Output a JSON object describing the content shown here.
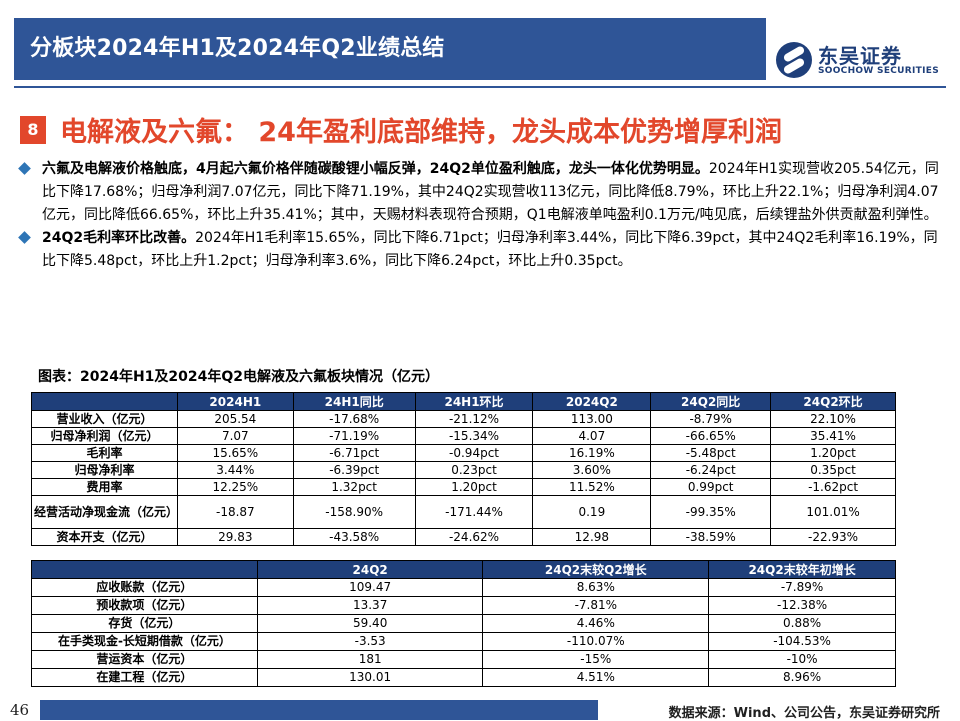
{
  "header": {
    "title": "分板块2024年H1及2024年Q2业绩总结",
    "logo_cn": "东吴证券",
    "logo_en": "SOOCHOW SECURITIES"
  },
  "section": {
    "number": "8",
    "title": "电解液及六氟： 24年盈利底部维持，龙头成本优势增厚利润"
  },
  "bullets": [
    {
      "bold": "六氟及电解液价格触底，4月起六氟价格伴随碳酸锂小幅反弹，24Q2单位盈利触底，龙头一体化优势明显。",
      "text": "2024年H1实现营收205.54亿元，同比下降17.68%；归母净利润7.07亿元，同比下降71.19%，其中24Q2实现营收113亿元，同比降低8.79%，环比上升22.1%；归母净利润4.07亿元，同比降低66.65%，环比上升35.41%；其中，天赐材料表现符合预期，Q1电解液单吨盈利0.1万元/吨见底，后续锂盐外供贡献盈利弹性。"
    },
    {
      "bold": "24Q2毛利率环比改善。",
      "text": "2024年H1毛利率15.65%，同比下降6.71pct；归母净利率3.44%，同比下降6.39pct，其中24Q2毛利率16.19%，同比下降5.48pct，环比上升1.2pct；归母净利率3.6%，同比下降6.24pct，环比上升0.35pct。"
    }
  ],
  "table1": {
    "caption": "图表：2024年H1及2024年Q2电解液及六氟板块情况（亿元）",
    "headers": [
      "",
      "2024H1",
      "24H1同比",
      "24H1环比",
      "2024Q2",
      "24Q2同比",
      "24Q2环比"
    ],
    "rows": [
      [
        "营业收入（亿元）",
        "205.54",
        "-17.68%",
        "-21.12%",
        "113.00",
        "-8.79%",
        "22.10%"
      ],
      [
        "归母净利润（亿元）",
        "7.07",
        "-71.19%",
        "-15.34%",
        "4.07",
        "-66.65%",
        "35.41%"
      ],
      [
        "毛利率",
        "15.65%",
        "-6.71pct",
        "-0.94pct",
        "16.19%",
        "-5.48pct",
        "1.20pct"
      ],
      [
        "归母净利率",
        "3.44%",
        "-6.39pct",
        "0.23pct",
        "3.60%",
        "-6.24pct",
        "0.35pct"
      ],
      [
        "费用率",
        "12.25%",
        "1.32pct",
        "1.20pct",
        "11.52%",
        "0.99pct",
        "-1.62pct"
      ],
      [
        "经营活动净现金流（亿元）",
        "-18.87",
        "-158.90%",
        "-171.44%",
        "0.19",
        "-99.35%",
        "101.01%"
      ],
      [
        "资本开支（亿元）",
        "29.83",
        "-43.58%",
        "-24.62%",
        "12.98",
        "-38.59%",
        "-22.93%"
      ]
    ]
  },
  "table2": {
    "headers": [
      "",
      "24Q2",
      "24Q2末较Q2增长",
      "24Q2末较年初增长"
    ],
    "rows": [
      [
        "应收账款（亿元）",
        "109.47",
        "8.63%",
        "-7.89%"
      ],
      [
        "预收款项（亿元）",
        "13.37",
        "-7.81%",
        "-12.38%"
      ],
      [
        "存货（亿元）",
        "59.40",
        "4.46%",
        "0.88%"
      ],
      [
        "在手类现金-长短期借款（亿元）",
        "-3.53",
        "-110.07%",
        "-104.53%"
      ],
      [
        "营运资本（亿元）",
        "181",
        "-15%",
        "-10%"
      ],
      [
        "在建工程（亿元）",
        "130.01",
        "4.51%",
        "8.96%"
      ]
    ]
  },
  "footer": {
    "page": "46",
    "source": "数据来源：Wind、公司公告，东吴证券研究所"
  }
}
